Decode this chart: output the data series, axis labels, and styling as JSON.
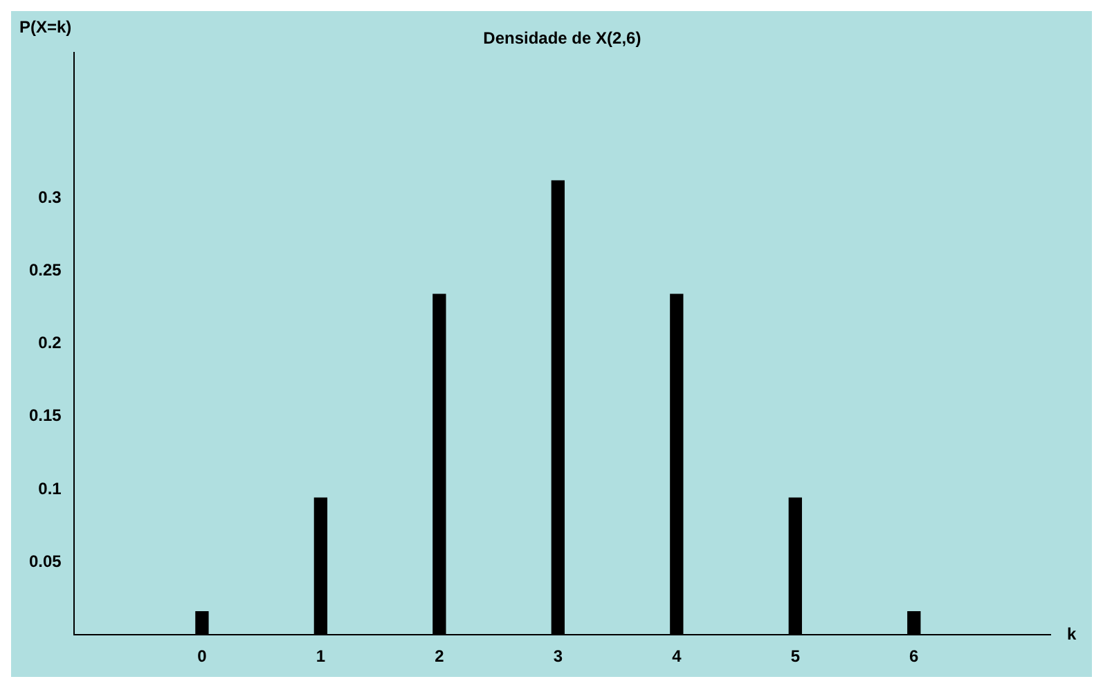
{
  "chart_data": {
    "type": "bar",
    "title": "Densidade de X(2,6)",
    "xlabel": "k",
    "ylabel": "P(X=k)",
    "x": [
      0,
      1,
      2,
      3,
      4,
      5,
      6
    ],
    "values": [
      0.016,
      0.094,
      0.234,
      0.312,
      0.234,
      0.094,
      0.016
    ],
    "color": "#000000",
    "xlim": [
      -1.08,
      7.15
    ],
    "xticks": [
      0,
      1,
      2,
      3,
      4,
      5,
      6
    ],
    "ylim": [
      0,
      0.4
    ],
    "yticks": [
      0.05,
      0.1,
      0.15,
      0.2,
      0.25,
      0.3
    ],
    "grid": false,
    "legend": false
  }
}
